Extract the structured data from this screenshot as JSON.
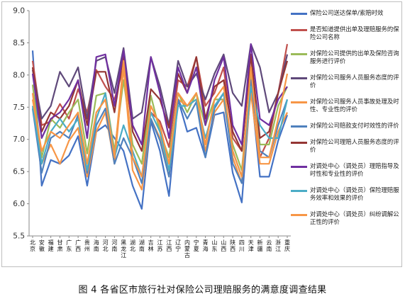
{
  "caption": "图 4  各省区市旅行社对保险公司理赔服务的满意度调查结果",
  "chart_data": {
    "type": "line",
    "title": "",
    "xlabel": "",
    "ylabel": "",
    "ylim": [
      5.5,
      9.0
    ],
    "yticks": [
      "5.5",
      "6.0",
      "6.5",
      "7.0",
      "7.5",
      "8.0",
      "8.5",
      "9.0"
    ],
    "grid": false,
    "legend": "right",
    "categories": [
      "北京",
      "安徽",
      "福建",
      "甘肃",
      "广东",
      "广西",
      "贵州",
      "海南",
      "河北",
      "河南",
      "黑龙江",
      "湖北",
      "湖南",
      "吉林",
      "江苏",
      "江西",
      "辽宁",
      "内蒙古",
      "宁夏",
      "青海",
      "山东",
      "山西",
      "陕西",
      "四川",
      "天津",
      "新疆",
      "云南",
      "浙江",
      "重庆"
    ],
    "series": [
      {
        "name": "保险公司送达保单/索赔时效",
        "color": "#4472C4",
        "values": [
          8.38,
          6.28,
          6.68,
          6.62,
          6.75,
          7.05,
          6.28,
          7.12,
          7.22,
          7.02,
          6.82,
          6.28,
          5.92,
          7.28,
          6.82,
          6.12,
          7.62,
          7.12,
          7.18,
          6.72,
          7.38,
          7.42,
          6.48,
          6.02,
          7.82,
          6.42,
          6.42,
          6.98,
          7.38
        ]
      },
      {
        "name": "是否知道提供出单及理赔服务的保险公司名称",
        "color": "#C0504D",
        "values": [
          8.22,
          7.22,
          7.28,
          7.55,
          7.32,
          7.78,
          7.42,
          8.08,
          7.82,
          7.62,
          8.12,
          7.22,
          6.92,
          7.42,
          7.28,
          6.88,
          7.92,
          7.82,
          8.28,
          7.52,
          7.72,
          8.12,
          7.02,
          6.82,
          8.32,
          6.72,
          7.02,
          7.72,
          8.48
        ]
      },
      {
        "name": "对保险公司提供的出单及保险咨询服务进行评价",
        "color": "#9BBB59",
        "values": [
          7.85,
          6.72,
          7.32,
          7.18,
          7.42,
          7.62,
          6.78,
          7.68,
          7.72,
          6.82,
          7.92,
          6.92,
          6.62,
          7.68,
          7.12,
          6.72,
          7.72,
          7.42,
          7.72,
          7.22,
          7.62,
          7.62,
          6.92,
          6.52,
          8.02,
          6.92,
          6.92,
          7.52,
          7.82
        ]
      },
      {
        "name": "对保险公司服务人员服务态度的评价",
        "color": "#5F497A",
        "values": [
          8.08,
          7.32,
          7.52,
          8.05,
          7.82,
          8.12,
          7.32,
          8.22,
          8.28,
          7.72,
          8.42,
          7.32,
          7.42,
          8.28,
          7.82,
          7.22,
          8.22,
          7.82,
          8.02,
          7.62,
          8.02,
          8.32,
          7.72,
          7.52,
          8.48,
          8.12,
          7.42,
          7.72,
          8.32
        ]
      },
      {
        "name": "对保险公司服务人员事故处理及时性、专业性的评价",
        "color": "#F79646",
        "values": [
          7.72,
          6.62,
          6.92,
          6.62,
          6.98,
          7.18,
          6.42,
          7.12,
          7.42,
          6.62,
          8.12,
          6.52,
          6.22,
          7.32,
          7.02,
          6.42,
          7.62,
          7.52,
          7.62,
          6.82,
          7.42,
          7.62,
          6.72,
          6.32,
          7.72,
          6.62,
          6.62,
          7.12,
          7.42
        ]
      },
      {
        "name": "对保险公司赔款支付时效性的评价",
        "color": "#4F81BD",
        "values": [
          7.48,
          6.48,
          7.02,
          7.12,
          7.02,
          7.38,
          6.48,
          7.22,
          7.48,
          6.62,
          7.02,
          6.72,
          6.32,
          7.32,
          6.98,
          6.42,
          7.62,
          7.32,
          7.58,
          6.72,
          7.48,
          7.72,
          6.62,
          6.32,
          7.92,
          6.82,
          6.72,
          7.22,
          7.62
        ]
      },
      {
        "name": "对保险公司理赔人员服务态度的评价",
        "color": "#943634",
        "values": [
          8.12,
          7.12,
          7.42,
          7.32,
          7.52,
          7.92,
          7.22,
          8.05,
          8.05,
          7.42,
          8.32,
          7.12,
          6.82,
          7.78,
          7.62,
          7.18,
          8.02,
          7.72,
          8.28,
          7.32,
          7.82,
          7.92,
          7.12,
          6.82,
          8.32,
          7.02,
          7.12,
          7.72,
          8.22
        ]
      },
      {
        "name": "对调处中心（调处员）理赔指导及时性和专业性的评价",
        "color": "#7030A0",
        "values": [
          8.02,
          7.02,
          7.32,
          7.42,
          7.62,
          7.92,
          7.02,
          8.28,
          8.32,
          7.52,
          8.38,
          7.22,
          6.92,
          8.28,
          7.72,
          7.02,
          8.12,
          7.72,
          8.12,
          7.22,
          7.92,
          8.28,
          7.22,
          6.92,
          8.48,
          7.32,
          7.22,
          7.62,
          7.82
        ]
      },
      {
        "name": "对调处中心（调处员）保险理赔服务效率和效果的评价",
        "color": "#4BACC6",
        "values": [
          7.52,
          6.62,
          7.12,
          7.32,
          7.12,
          7.32,
          6.52,
          7.32,
          7.72,
          6.72,
          7.22,
          6.82,
          6.42,
          7.42,
          7.12,
          6.52,
          7.52,
          7.52,
          7.62,
          7.02,
          7.52,
          7.72,
          6.82,
          6.42,
          7.82,
          7.22,
          7.02,
          7.02,
          7.62
        ]
      },
      {
        "name": "对调处中心（调处员）纠纷调解公正性的评价",
        "color": "#F79646",
        "values": [
          7.62,
          6.82,
          7.12,
          7.02,
          7.22,
          7.42,
          6.62,
          7.42,
          7.62,
          6.72,
          8.22,
          6.72,
          6.42,
          7.52,
          7.22,
          6.62,
          7.72,
          7.52,
          7.72,
          6.92,
          7.62,
          7.82,
          6.82,
          6.42,
          8.12,
          6.72,
          6.72,
          7.32,
          8.02
        ]
      }
    ]
  }
}
